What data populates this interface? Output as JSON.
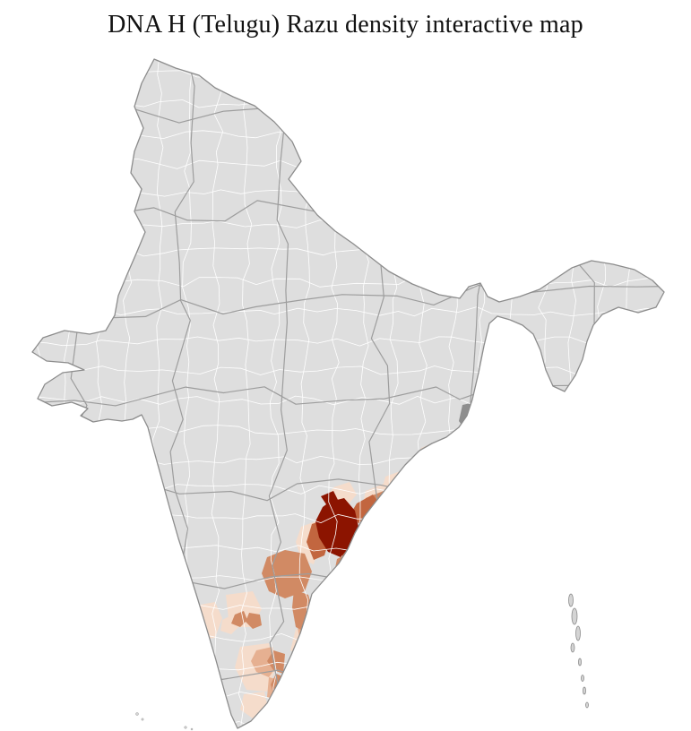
{
  "page": {
    "title": "DNA H (Telugu) Razu density interactive map",
    "background_color": "#ffffff"
  },
  "map": {
    "region": "India",
    "subdivision": "districts",
    "base_fill": "#dedede",
    "outline_color": "#8c8c8c",
    "district_border_color": "#ffffff",
    "state_border_color": "#9d9d9d",
    "dark_gray_patch_color": "#8e8e8e",
    "islands_fill": "#d4d4d4",
    "islands_stroke": "#8c8c8c",
    "density_levels": [
      {
        "level": "lowest",
        "color": "#f5dccb"
      },
      {
        "level": "low",
        "color": "#e6b091"
      },
      {
        "level": "medium",
        "color": "#d18a64"
      },
      {
        "level": "high",
        "color": "#c2663f"
      },
      {
        "level": "highest",
        "color": "#8c1400"
      }
    ]
  }
}
